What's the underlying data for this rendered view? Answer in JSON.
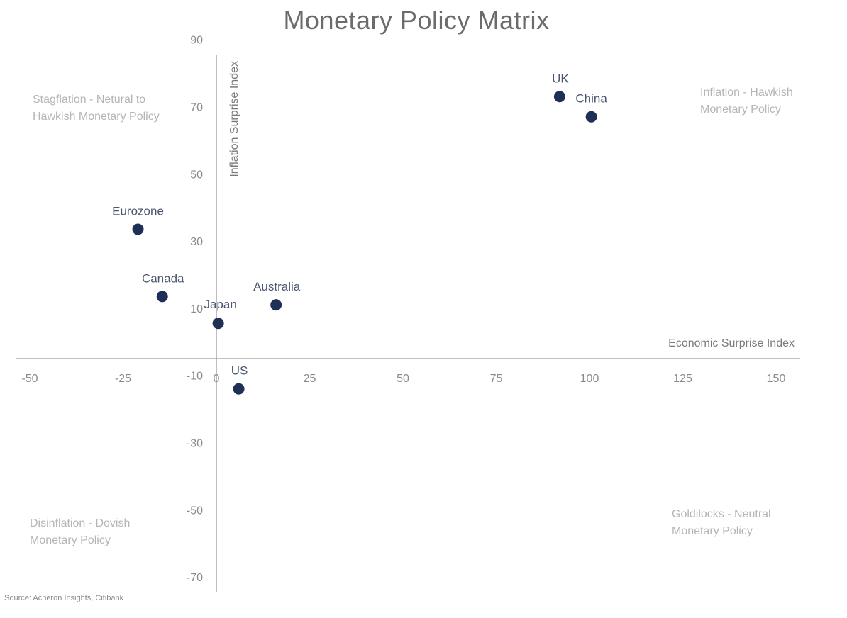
{
  "chart_data": {
    "type": "scatter",
    "title": "Monetary Policy Matrix",
    "xlabel": "Economic Surprise Index",
    "ylabel": "Inflation Surprise Index",
    "xlim": [
      -50,
      150
    ],
    "ylim": [
      -70,
      90
    ],
    "xticks": [
      -50,
      -25,
      0,
      25,
      50,
      75,
      100,
      125,
      150
    ],
    "yticks": [
      90,
      70,
      50,
      30,
      10,
      -10,
      -30,
      -50,
      -70
    ],
    "grid": false,
    "legend": "none",
    "marker_color": "#1f3057",
    "points": [
      {
        "label": "UK",
        "x": 92,
        "y": 73
      },
      {
        "label": "China",
        "x": 100.5,
        "y": 67
      },
      {
        "label": "Eurozone",
        "x": -21,
        "y": 33.5
      },
      {
        "label": "Canada",
        "x": -14.5,
        "y": 13.5
      },
      {
        "label": "Australia",
        "x": 16,
        "y": 11
      },
      {
        "label": "Japan",
        "x": 0.5,
        "y": 5.5
      },
      {
        "label": "US",
        "x": 6,
        "y": -14
      }
    ],
    "annotations": {
      "top_left": "Stagflation - Netural to Hawkish Monetary Policy",
      "top_right": "Inflation - Hawkish Monetary Policy",
      "bottom_left": "Disinflation - Dovish Monetary Policy",
      "bottom_right": "Goldilocks - Neutral Monetary Policy"
    }
  },
  "source": "Source: Acheron Insights, Citibank"
}
